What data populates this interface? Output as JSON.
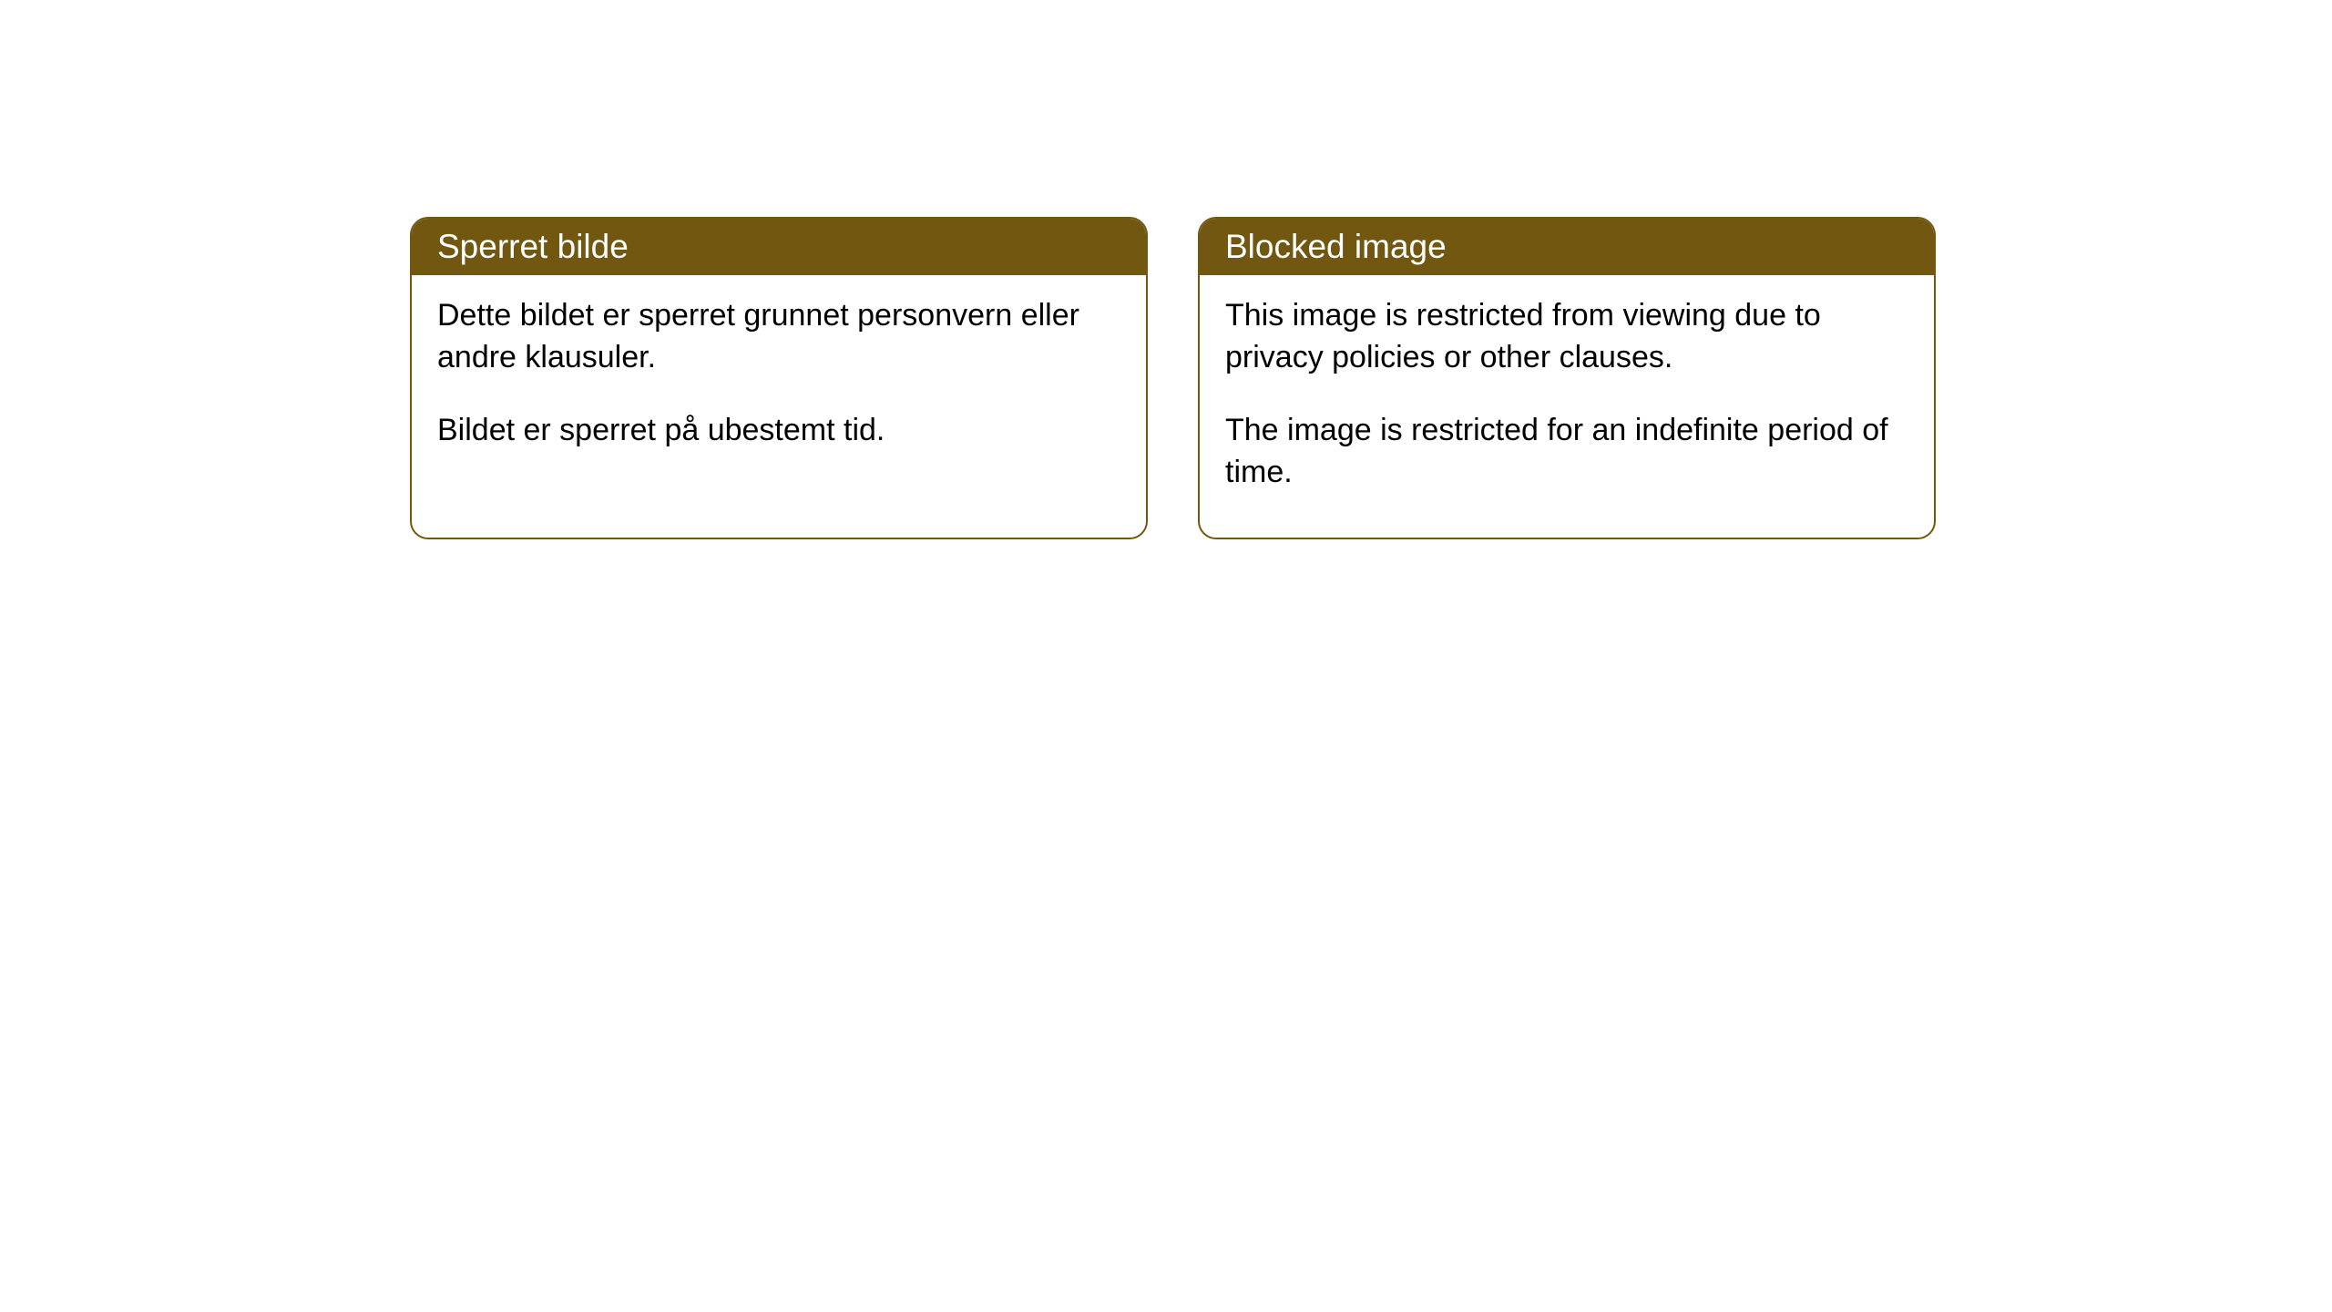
{
  "cards": [
    {
      "title": "Sperret bilde",
      "paragraph1": "Dette bildet er sperret grunnet personvern eller andre klausuler.",
      "paragraph2": "Bildet er sperret på ubestemt tid."
    },
    {
      "title": "Blocked image",
      "paragraph1": "This image is restricted from viewing due to privacy policies or other clauses.",
      "paragraph2": "The image is restricted for an indefinite period of time."
    }
  ],
  "style": {
    "header_bg_color": "#725710",
    "header_text_color": "#ffffff",
    "border_color": "#725710",
    "body_text_color": "#000000",
    "card_bg_color": "#ffffff",
    "border_radius": 20,
    "header_fontsize": 37,
    "body_fontsize": 34
  }
}
